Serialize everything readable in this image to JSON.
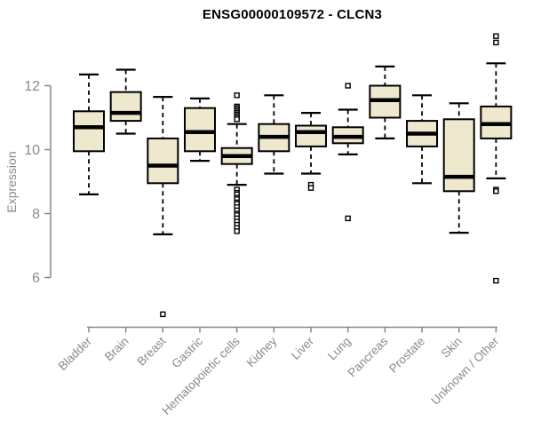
{
  "title": "ENSG00000109572 - CLCN3",
  "chart_data": {
    "type": "boxplot",
    "title": "ENSG00000109572 - CLCN3",
    "ylabel": "Expression",
    "xlabel": "",
    "yticks": [
      6,
      8,
      10,
      12
    ],
    "ylim": [
      6,
      12
    ],
    "grid": false,
    "legend": false,
    "categories": [
      "Bladder",
      "Brain",
      "Breast",
      "Gastric",
      "Hematopoietic cells",
      "Kidney",
      "Liver",
      "Lung",
      "Pancreas",
      "Prostate",
      "Skin",
      "Unknown / Other"
    ],
    "boxes": [
      {
        "category": "Bladder",
        "whisker_low": 8.6,
        "q1": 9.95,
        "median": 10.7,
        "q3": 11.2,
        "whisker_high": 12.35,
        "outliers": []
      },
      {
        "category": "Brain",
        "whisker_low": 10.5,
        "q1": 10.9,
        "median": 11.15,
        "q3": 11.8,
        "whisker_high": 12.5,
        "outliers": []
      },
      {
        "category": "Breast",
        "whisker_low": 7.35,
        "q1": 8.95,
        "median": 9.5,
        "q3": 10.35,
        "whisker_high": 11.65,
        "outliers": [
          4.85
        ]
      },
      {
        "category": "Gastric",
        "whisker_low": 9.65,
        "q1": 9.95,
        "median": 10.55,
        "q3": 11.3,
        "whisker_high": 11.6,
        "outliers": []
      },
      {
        "category": "Hematopoietic cells",
        "whisker_low": 8.9,
        "q1": 9.55,
        "median": 9.8,
        "q3": 10.05,
        "whisker_high": 10.8,
        "outliers": [
          11.7,
          11.35,
          11.3,
          11.25,
          11.2,
          11.15,
          11.1,
          11.05,
          11.0,
          10.95,
          8.75,
          8.65,
          8.6,
          8.5,
          8.45,
          8.35,
          8.3,
          8.2,
          8.1,
          8.0,
          7.95,
          7.85,
          7.75,
          7.65,
          7.55,
          7.45
        ]
      },
      {
        "category": "Kidney",
        "whisker_low": 9.25,
        "q1": 9.95,
        "median": 10.4,
        "q3": 10.8,
        "whisker_high": 11.7,
        "outliers": []
      },
      {
        "category": "Liver",
        "whisker_low": 9.25,
        "q1": 10.1,
        "median": 10.55,
        "q3": 10.75,
        "whisker_high": 11.15,
        "outliers": [
          8.9,
          8.8
        ]
      },
      {
        "category": "Lung",
        "whisker_low": 9.85,
        "q1": 10.2,
        "median": 10.4,
        "q3": 10.7,
        "whisker_high": 11.25,
        "outliers": [
          12.0,
          7.85
        ]
      },
      {
        "category": "Pancreas",
        "whisker_low": 10.35,
        "q1": 11.0,
        "median": 11.55,
        "q3": 12.0,
        "whisker_high": 12.6,
        "outliers": []
      },
      {
        "category": "Prostate",
        "whisker_low": 8.95,
        "q1": 10.1,
        "median": 10.5,
        "q3": 10.9,
        "whisker_high": 11.7,
        "outliers": []
      },
      {
        "category": "Skin",
        "whisker_low": 7.4,
        "q1": 8.7,
        "median": 9.15,
        "q3": 10.95,
        "whisker_high": 11.45,
        "outliers": []
      },
      {
        "category": "Unknown / Other",
        "whisker_low": 9.1,
        "q1": 10.35,
        "median": 10.8,
        "q3": 11.35,
        "whisker_high": 12.7,
        "outliers": [
          13.55,
          13.35,
          8.75,
          8.7,
          5.9
        ]
      }
    ],
    "colors": {
      "box_fill": "#EEE8CE",
      "box_border": "#000000",
      "median": "#000000",
      "axis": "#878787",
      "label": "#8A8A8A",
      "title": "#000000",
      "background": "#FFFFFF"
    }
  }
}
